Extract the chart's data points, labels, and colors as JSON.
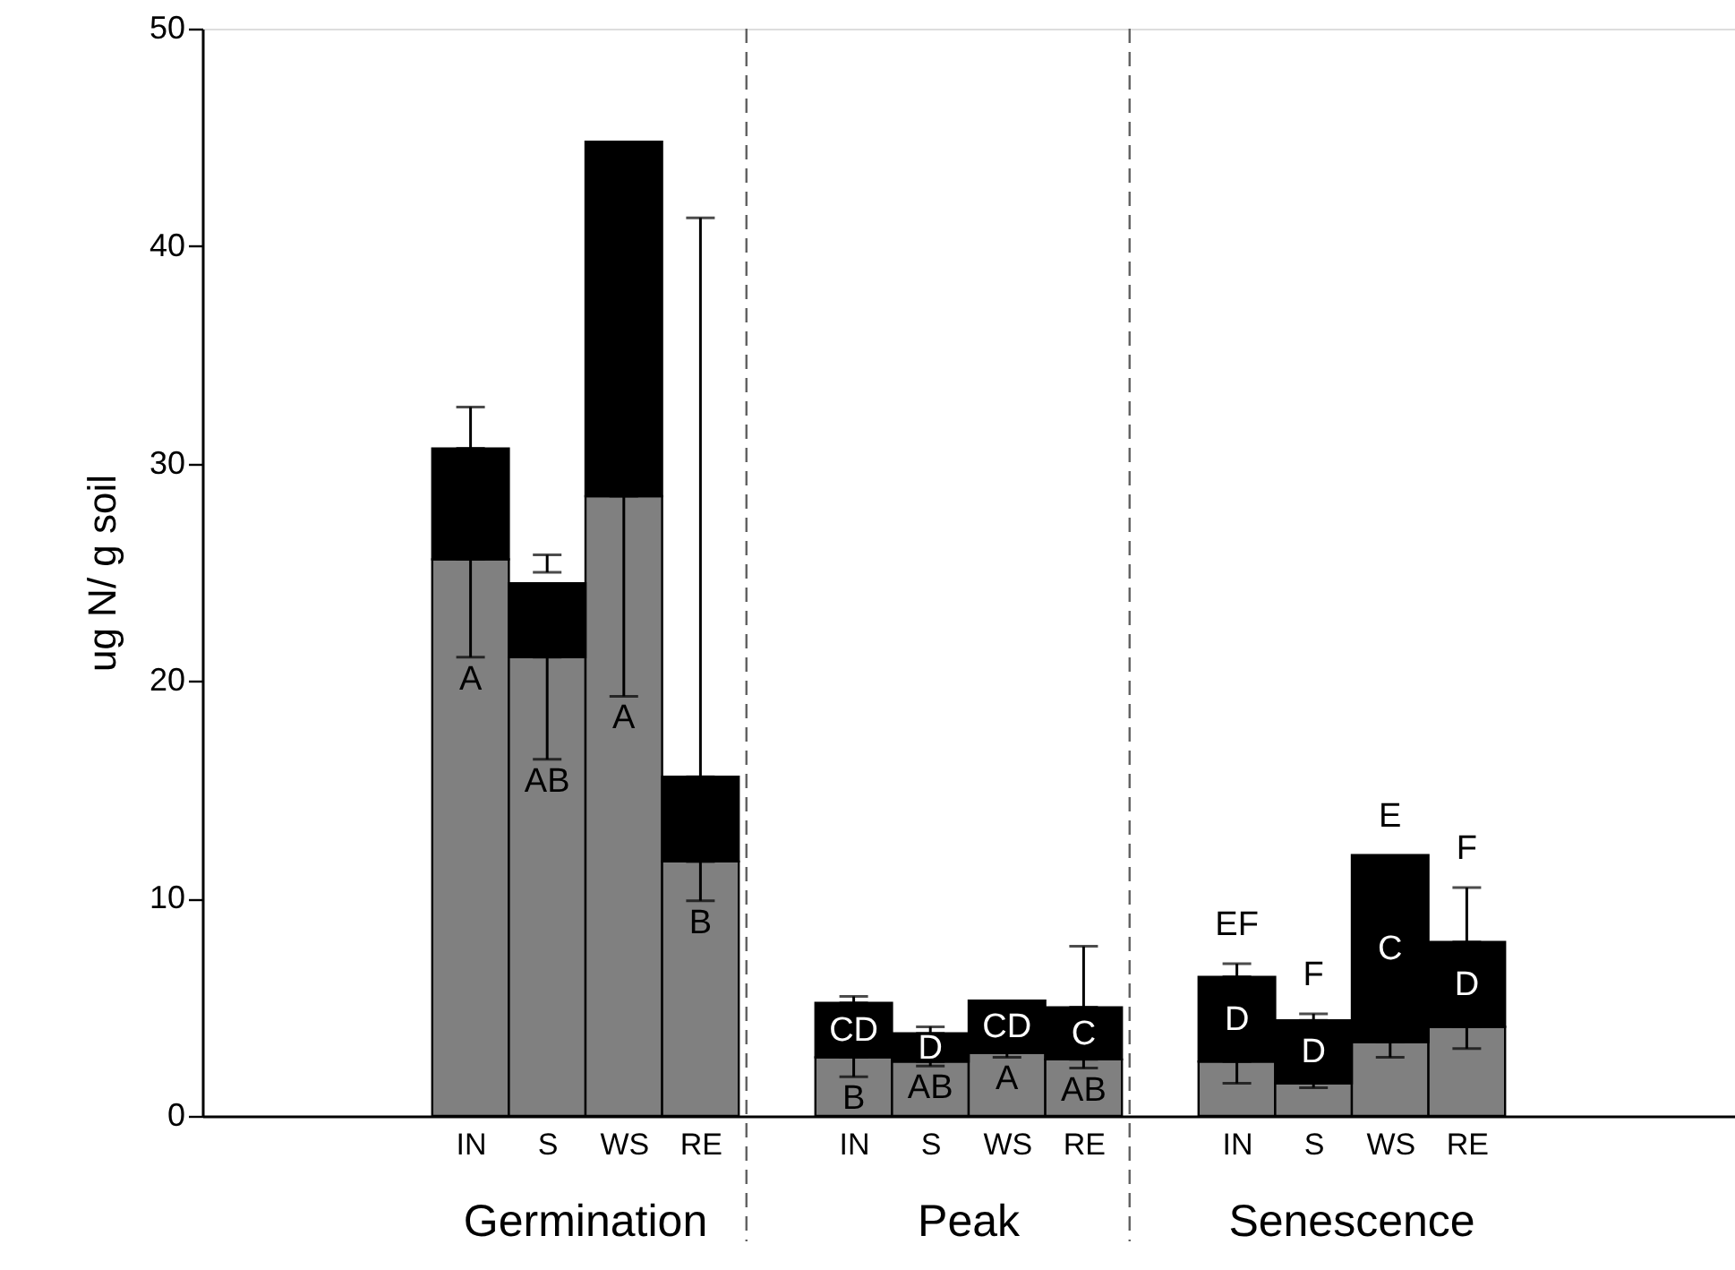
{
  "chart_data": {
    "type": "bar",
    "stacked": true,
    "ylabel": "ug N/ g soil",
    "categories": [
      null,
      null,
      null,
      "IN",
      "S",
      "WS",
      "RE",
      null,
      "IN",
      "S",
      "WS",
      "RE",
      null,
      "IN",
      "S",
      "WS",
      "RE",
      null,
      null,
      null
    ],
    "ylim": [
      0,
      50
    ],
    "yticks": [
      0,
      10,
      20,
      30,
      40,
      50
    ],
    "series": [
      {
        "color": "#808080",
        "values": [
          null,
          null,
          null,
          25.6,
          21.1,
          28.5,
          11.7,
          null,
          2.7,
          2.5,
          2.9,
          2.6,
          null,
          2.5,
          1.5,
          3.4,
          4.1,
          null,
          null,
          null
        ],
        "errors": [
          null,
          null,
          null,
          [
            21.1,
            25.6
          ],
          [
            16.4,
            21.1
          ],
          [
            19.3,
            28.5
          ],
          [
            9.9,
            11.7
          ],
          null,
          [
            1.8,
            2.7
          ],
          [
            2.3,
            2.5
          ],
          [
            2.7,
            2.9
          ],
          [
            2.2,
            2.6
          ],
          null,
          [
            1.5,
            2.5
          ],
          [
            1.3,
            1.5
          ],
          [
            2.7,
            3.4
          ],
          [
            3.1,
            4.1
          ],
          null,
          null,
          null
        ],
        "value_labels": [
          null,
          null,
          null,
          "A",
          "AB",
          "A",
          "B",
          null,
          "B",
          "AB",
          "A",
          "AB",
          null,
          null,
          null,
          null,
          null,
          null,
          null,
          null
        ]
      },
      {
        "color": "#000000",
        "values": [
          null,
          null,
          null,
          5.1,
          3.4,
          16.3,
          3.9,
          null,
          2.5,
          1.3,
          2.4,
          2.4,
          null,
          3.9,
          2.9,
          8.6,
          3.9,
          null,
          null,
          null
        ],
        "errors": [
          null,
          null,
          null,
          [
            30.7,
            32.6
          ],
          [
            25.0,
            25.8
          ],
          null,
          [
            15.6,
            41.3
          ],
          null,
          [
            5.2,
            5.5
          ],
          [
            3.8,
            4.1
          ],
          null,
          [
            5.0,
            7.8
          ],
          null,
          [
            6.4,
            7.0
          ],
          [
            4.4,
            4.7
          ],
          null,
          [
            8.0,
            10.5
          ],
          null,
          null,
          null
        ],
        "value_labels": [
          null,
          null,
          null,
          null,
          null,
          null,
          null,
          null,
          "CD",
          "D",
          "CD",
          "C",
          null,
          "D",
          "D",
          "C",
          "D",
          null,
          null,
          null
        ]
      }
    ],
    "totals": [
      null,
      null,
      null,
      null,
      null,
      null,
      null,
      null,
      null,
      null,
      null,
      null,
      null,
      "EF",
      "F",
      "E",
      "F",
      null,
      null,
      null
    ],
    "annotations": [
      "Germination",
      "Peak",
      "Senescence"
    ],
    "grid": false
  }
}
